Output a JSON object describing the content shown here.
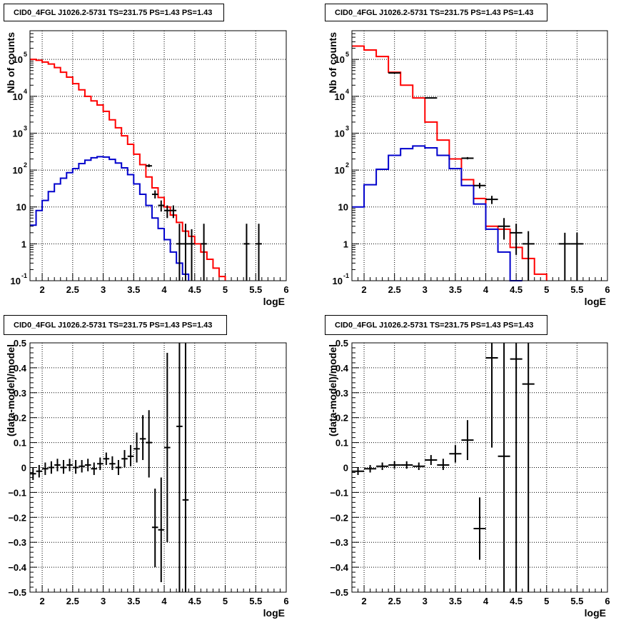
{
  "chart_data": [
    {
      "id": "spectrum-left",
      "type": "line",
      "title": "CID0_4FGL J1026.2-5731 TS=231.75 PS=1.43 PS=1.43",
      "xlabel": "logE",
      "ylabel": "Nb of counts",
      "xlim": [
        1.8,
        6
      ],
      "ylim": [
        0.1,
        600000
      ],
      "yscale": "log",
      "grid": true,
      "xticks": [
        2,
        2.5,
        3,
        3.5,
        4,
        4.5,
        5,
        5.5,
        6
      ],
      "xtick_labels": [
        "2",
        "2.5",
        "3",
        "3.5",
        "4",
        "4.5",
        "5",
        "5.5",
        "6"
      ],
      "yticks": [
        {
          "v": 0.1,
          "base": "10",
          "exp": "-1"
        },
        {
          "v": 1,
          "base": "1",
          "exp": ""
        },
        {
          "v": 10,
          "base": "10",
          "exp": ""
        },
        {
          "v": 100,
          "base": "10",
          "exp": "2"
        },
        {
          "v": 1000,
          "base": "10",
          "exp": "3"
        },
        {
          "v": 10000,
          "base": "10",
          "exp": "4"
        },
        {
          "v": 100000,
          "base": "10",
          "exp": "5"
        }
      ],
      "series": [
        {
          "style": "step",
          "color": "#ff0000",
          "edges": [
            1.8,
            1.9,
            2.0,
            2.1,
            2.2,
            2.3,
            2.4,
            2.5,
            2.6,
            2.7,
            2.8,
            2.9,
            3.0,
            3.1,
            3.2,
            3.3,
            3.4,
            3.5,
            3.6,
            3.7,
            3.8,
            3.9,
            4.0,
            4.1,
            4.2,
            4.3,
            4.4,
            4.5,
            4.6,
            4.7,
            4.8,
            4.9,
            5.0
          ],
          "values": [
            100000,
            95000,
            85000,
            75000,
            60000,
            45000,
            33000,
            22000,
            15000,
            10000,
            7500,
            5800,
            3900,
            2300,
            1400,
            850,
            500,
            270,
            140,
            65,
            33,
            18,
            10,
            6,
            3.8,
            2.2,
            1.6,
            1.0,
            0.6,
            0.38,
            0.22,
            0.13,
            0.1
          ]
        },
        {
          "style": "step",
          "color": "#0000cc",
          "edges": [
            1.8,
            1.9,
            2.0,
            2.1,
            2.2,
            2.3,
            2.4,
            2.5,
            2.6,
            2.7,
            2.8,
            2.9,
            3.0,
            3.1,
            3.2,
            3.3,
            3.4,
            3.5,
            3.6,
            3.7,
            3.8,
            3.9,
            4.0,
            4.1,
            4.2,
            4.3,
            4.4
          ],
          "values": [
            3.2,
            8,
            15,
            26,
            42,
            60,
            85,
            110,
            150,
            185,
            215,
            230,
            225,
            195,
            155,
            115,
            75,
            42,
            22,
            11,
            5,
            2.6,
            1.3,
            0.6,
            0.3,
            0.15,
            0.1
          ]
        },
        {
          "style": "errorbar",
          "color": "#000000",
          "points": [
            {
              "x": 3.75,
              "y": 130,
              "xerr": 0.05,
              "ylo": 120,
              "yhi": 145
            },
            {
              "x": 3.85,
              "y": 22,
              "xerr": 0.05,
              "ylo": 17,
              "yhi": 28
            },
            {
              "x": 3.95,
              "y": 11,
              "xerr": 0.05,
              "ylo": 7.5,
              "yhi": 15
            },
            {
              "x": 4.05,
              "y": 8,
              "xerr": 0.05,
              "ylo": 5,
              "yhi": 11
            },
            {
              "x": 4.15,
              "y": 8,
              "xerr": 0.05,
              "ylo": 5,
              "yhi": 11
            },
            {
              "x": 4.25,
              "y": 1,
              "xerr": 0.05,
              "ylo": 0.1,
              "yhi": 3.5
            },
            {
              "x": 4.35,
              "y": 1,
              "xerr": 0.05,
              "ylo": 0.1,
              "yhi": 3.5
            },
            {
              "x": 4.45,
              "y": 1,
              "xerr": 0.05,
              "ylo": 0.1,
              "yhi": 2.5
            },
            {
              "x": 4.65,
              "y": 1,
              "xerr": 0.05,
              "ylo": 0.1,
              "yhi": 3.5
            },
            {
              "x": 5.35,
              "y": 1,
              "xerr": 0.05,
              "ylo": 0.1,
              "yhi": 3.5
            },
            {
              "x": 5.55,
              "y": 1,
              "xerr": 0.05,
              "ylo": 0.1,
              "yhi": 3.5
            }
          ]
        }
      ]
    },
    {
      "id": "spectrum-right",
      "type": "line",
      "title": "CID0_4FGL J1026.2-5731 TS=231.75 PS=1.43 PS=1.43",
      "xlabel": "logE",
      "ylabel": "Nb of counts",
      "xlim": [
        1.8,
        6
      ],
      "ylim": [
        0.1,
        600000
      ],
      "yscale": "log",
      "grid": true,
      "xticks": [
        2,
        2.5,
        3,
        3.5,
        4,
        4.5,
        5,
        5.5,
        6
      ],
      "xtick_labels": [
        "2",
        "2.5",
        "3",
        "3.5",
        "4",
        "4.5",
        "5",
        "5.5",
        "6"
      ],
      "yticks": [
        {
          "v": 0.1,
          "base": "10",
          "exp": "-1"
        },
        {
          "v": 1,
          "base": "1",
          "exp": ""
        },
        {
          "v": 10,
          "base": "10",
          "exp": ""
        },
        {
          "v": 100,
          "base": "10",
          "exp": "2"
        },
        {
          "v": 1000,
          "base": "10",
          "exp": "3"
        },
        {
          "v": 10000,
          "base": "10",
          "exp": "4"
        },
        {
          "v": 100000,
          "base": "10",
          "exp": "5"
        }
      ],
      "series": [
        {
          "style": "step",
          "color": "#ff0000",
          "edges": [
            1.8,
            2.0,
            2.2,
            2.4,
            2.6,
            2.8,
            3.0,
            3.2,
            3.4,
            3.6,
            3.8,
            4.0,
            4.2,
            4.4,
            4.6,
            4.8,
            5.0
          ],
          "values": [
            230000,
            180000,
            120000,
            45000,
            20000,
            9000,
            2000,
            650,
            200,
            55,
            17,
            3,
            2.5,
            0.8,
            0.4,
            0.15,
            0.1
          ]
        },
        {
          "style": "step",
          "color": "#0000cc",
          "edges": [
            1.8,
            2.0,
            2.2,
            2.4,
            2.6,
            2.8,
            3.0,
            3.2,
            3.4,
            3.6,
            3.8,
            4.0,
            4.2,
            4.4,
            4.6
          ],
          "values": [
            10,
            40,
            105,
            250,
            380,
            450,
            400,
            250,
            110,
            38,
            12,
            2.5,
            0.6,
            0.1
          ]
        },
        {
          "style": "errorbar",
          "color": "#000000",
          "points": [
            {
              "x": 2.5,
              "y": 43000,
              "xerr": 0.1,
              "ylo": 42000,
              "yhi": 44000
            },
            {
              "x": 3.1,
              "y": 9000,
              "xerr": 0.1,
              "ylo": 8700,
              "yhi": 9300
            },
            {
              "x": 3.7,
              "y": 210,
              "xerr": 0.1,
              "ylo": 195,
              "yhi": 225
            },
            {
              "x": 3.9,
              "y": 38,
              "xerr": 0.1,
              "ylo": 32,
              "yhi": 45
            },
            {
              "x": 4.1,
              "y": 16,
              "xerr": 0.1,
              "ylo": 12,
              "yhi": 20
            },
            {
              "x": 4.3,
              "y": 3,
              "xerr": 0.1,
              "ylo": 1.3,
              "yhi": 5
            },
            {
              "x": 4.5,
              "y": 2,
              "xerr": 0.1,
              "ylo": 0.5,
              "yhi": 3.5
            },
            {
              "x": 4.7,
              "y": 1,
              "xerr": 0.1,
              "ylo": 0.1,
              "yhi": 2.2
            },
            {
              "x": 5.3,
              "y": 1,
              "xerr": 0.1,
              "ylo": 0.1,
              "yhi": 2
            },
            {
              "x": 5.5,
              "y": 1,
              "xerr": 0.1,
              "ylo": 0.1,
              "yhi": 2
            }
          ]
        }
      ]
    },
    {
      "id": "residual-left",
      "type": "scatter",
      "title": "CID0_4FGL J1026.2-5731 TS=231.75 PS=1.43 PS=1.43",
      "xlabel": "logE",
      "ylabel": "(data-model)/model",
      "xlim": [
        1.8,
        6
      ],
      "ylim": [
        -0.5,
        0.5
      ],
      "yscale": "linear",
      "grid": true,
      "xticks": [
        2,
        2.5,
        3,
        3.5,
        4,
        4.5,
        5,
        5.5,
        6
      ],
      "xtick_labels": [
        "2",
        "2.5",
        "3",
        "3.5",
        "4",
        "4.5",
        "5",
        "5.5",
        "6"
      ],
      "yticks": [
        {
          "v": -0.5,
          "label": "−0.5"
        },
        {
          "v": -0.4,
          "label": "−0.4"
        },
        {
          "v": -0.3,
          "label": "−0.3"
        },
        {
          "v": -0.2,
          "label": "−0.2"
        },
        {
          "v": -0.1,
          "label": "−0.1"
        },
        {
          "v": 0,
          "label": "0"
        },
        {
          "v": 0.1,
          "label": "0.1"
        },
        {
          "v": 0.2,
          "label": "0.2"
        },
        {
          "v": 0.3,
          "label": "0.3"
        },
        {
          "v": 0.4,
          "label": "0.4"
        },
        {
          "v": 0.5,
          "label": "0.5"
        }
      ],
      "series": [
        {
          "style": "errorbar",
          "color": "#000000",
          "points": [
            {
              "x": 1.85,
              "y": -0.025,
              "xerr": 0.05,
              "ylo": -0.05,
              "yhi": 0.0
            },
            {
              "x": 1.95,
              "y": -0.015,
              "xerr": 0.05,
              "ylo": -0.04,
              "yhi": 0.01
            },
            {
              "x": 2.05,
              "y": -0.005,
              "xerr": 0.05,
              "ylo": -0.03,
              "yhi": 0.02
            },
            {
              "x": 2.15,
              "y": 0.0,
              "xerr": 0.05,
              "ylo": -0.025,
              "yhi": 0.025
            },
            {
              "x": 2.25,
              "y": 0.01,
              "xerr": 0.05,
              "ylo": -0.015,
              "yhi": 0.035
            },
            {
              "x": 2.35,
              "y": 0.0,
              "xerr": 0.05,
              "ylo": -0.025,
              "yhi": 0.03
            },
            {
              "x": 2.45,
              "y": 0.01,
              "xerr": 0.05,
              "ylo": -0.015,
              "yhi": 0.035
            },
            {
              "x": 2.55,
              "y": 0.0,
              "xerr": 0.05,
              "ylo": -0.025,
              "yhi": 0.03
            },
            {
              "x": 2.65,
              "y": 0.005,
              "xerr": 0.05,
              "ylo": -0.02,
              "yhi": 0.03
            },
            {
              "x": 2.75,
              "y": 0.01,
              "xerr": 0.05,
              "ylo": -0.015,
              "yhi": 0.035
            },
            {
              "x": 2.85,
              "y": -0.005,
              "xerr": 0.05,
              "ylo": -0.03,
              "yhi": 0.02
            },
            {
              "x": 2.95,
              "y": 0.015,
              "xerr": 0.05,
              "ylo": -0.01,
              "yhi": 0.04
            },
            {
              "x": 3.05,
              "y": 0.035,
              "xerr": 0.05,
              "ylo": 0.01,
              "yhi": 0.06
            },
            {
              "x": 3.15,
              "y": 0.015,
              "xerr": 0.05,
              "ylo": -0.01,
              "yhi": 0.045
            },
            {
              "x": 3.25,
              "y": 0.0,
              "xerr": 0.05,
              "ylo": -0.03,
              "yhi": 0.03
            },
            {
              "x": 3.35,
              "y": 0.035,
              "xerr": 0.05,
              "ylo": 0.0,
              "yhi": 0.07
            },
            {
              "x": 3.45,
              "y": 0.045,
              "xerr": 0.05,
              "ylo": 0.005,
              "yhi": 0.09
            },
            {
              "x": 3.55,
              "y": 0.075,
              "xerr": 0.05,
              "ylo": 0.02,
              "yhi": 0.14
            },
            {
              "x": 3.65,
              "y": 0.115,
              "xerr": 0.05,
              "ylo": 0.03,
              "yhi": 0.21
            },
            {
              "x": 3.75,
              "y": 0.1,
              "xerr": 0.05,
              "ylo": -0.04,
              "yhi": 0.23
            },
            {
              "x": 3.85,
              "y": -0.24,
              "xerr": 0.05,
              "ylo": -0.4,
              "yhi": -0.085
            },
            {
              "x": 3.95,
              "y": -0.25,
              "xerr": 0.05,
              "ylo": -0.46,
              "yhi": -0.04
            },
            {
              "x": 4.05,
              "y": 0.08,
              "xerr": 0.05,
              "ylo": -0.3,
              "yhi": 0.46
            },
            {
              "x": 4.25,
              "y": 0.165,
              "xerr": 0.05,
              "ylo": -0.5,
              "yhi": 0.5
            },
            {
              "x": 4.35,
              "y": -0.13,
              "xerr": 0.05,
              "ylo": -0.5,
              "yhi": 0.5
            }
          ]
        }
      ]
    },
    {
      "id": "residual-right",
      "type": "scatter",
      "title": "CID0_4FGL J1026.2-5731 TS=231.75 PS=1.43 PS=1.43",
      "xlabel": "logE",
      "ylabel": "(data-model)/model",
      "xlim": [
        1.8,
        6
      ],
      "ylim": [
        -0.5,
        0.5
      ],
      "yscale": "linear",
      "grid": true,
      "xticks": [
        2,
        2.5,
        3,
        3.5,
        4,
        4.5,
        5,
        5.5,
        6
      ],
      "xtick_labels": [
        "2",
        "2.5",
        "3",
        "3.5",
        "4",
        "4.5",
        "5",
        "5.5",
        "6"
      ],
      "yticks": [
        {
          "v": -0.5,
          "label": "−0.5"
        },
        {
          "v": -0.4,
          "label": "−0.4"
        },
        {
          "v": -0.3,
          "label": "−0.3"
        },
        {
          "v": -0.2,
          "label": "−0.2"
        },
        {
          "v": -0.1,
          "label": "−0.1"
        },
        {
          "v": 0,
          "label": "0"
        },
        {
          "v": 0.1,
          "label": "0.1"
        },
        {
          "v": 0.2,
          "label": "0.2"
        },
        {
          "v": 0.3,
          "label": "0.3"
        },
        {
          "v": 0.4,
          "label": "0.4"
        },
        {
          "v": 0.5,
          "label": "0.5"
        }
      ],
      "series": [
        {
          "style": "errorbar",
          "color": "#000000",
          "points": [
            {
              "x": 1.9,
              "y": -0.015,
              "xerr": 0.1,
              "ylo": -0.03,
              "yhi": 0.0
            },
            {
              "x": 2.1,
              "y": -0.005,
              "xerr": 0.1,
              "ylo": -0.02,
              "yhi": 0.01
            },
            {
              "x": 2.3,
              "y": 0.005,
              "xerr": 0.1,
              "ylo": -0.01,
              "yhi": 0.02
            },
            {
              "x": 2.5,
              "y": 0.01,
              "xerr": 0.1,
              "ylo": -0.005,
              "yhi": 0.025
            },
            {
              "x": 2.7,
              "y": 0.01,
              "xerr": 0.1,
              "ylo": -0.005,
              "yhi": 0.025
            },
            {
              "x": 2.9,
              "y": 0.005,
              "xerr": 0.1,
              "ylo": -0.01,
              "yhi": 0.02
            },
            {
              "x": 3.1,
              "y": 0.03,
              "xerr": 0.1,
              "ylo": 0.01,
              "yhi": 0.05
            },
            {
              "x": 3.3,
              "y": 0.01,
              "xerr": 0.1,
              "ylo": -0.01,
              "yhi": 0.035
            },
            {
              "x": 3.5,
              "y": 0.055,
              "xerr": 0.1,
              "ylo": 0.02,
              "yhi": 0.09
            },
            {
              "x": 3.7,
              "y": 0.11,
              "xerr": 0.1,
              "ylo": 0.03,
              "yhi": 0.19
            },
            {
              "x": 3.9,
              "y": -0.245,
              "xerr": 0.1,
              "ylo": -0.37,
              "yhi": -0.12
            },
            {
              "x": 4.1,
              "y": 0.44,
              "xerr": 0.1,
              "ylo": 0.08,
              "yhi": 0.5
            },
            {
              "x": 4.3,
              "y": 0.045,
              "xerr": 0.1,
              "ylo": -0.5,
              "yhi": 0.5
            },
            {
              "x": 4.5,
              "y": 0.435,
              "xerr": 0.1,
              "ylo": -0.5,
              "yhi": 0.5
            },
            {
              "x": 4.7,
              "y": 0.335,
              "xerr": 0.1,
              "ylo": -0.5,
              "yhi": 0.5
            }
          ]
        }
      ]
    }
  ]
}
